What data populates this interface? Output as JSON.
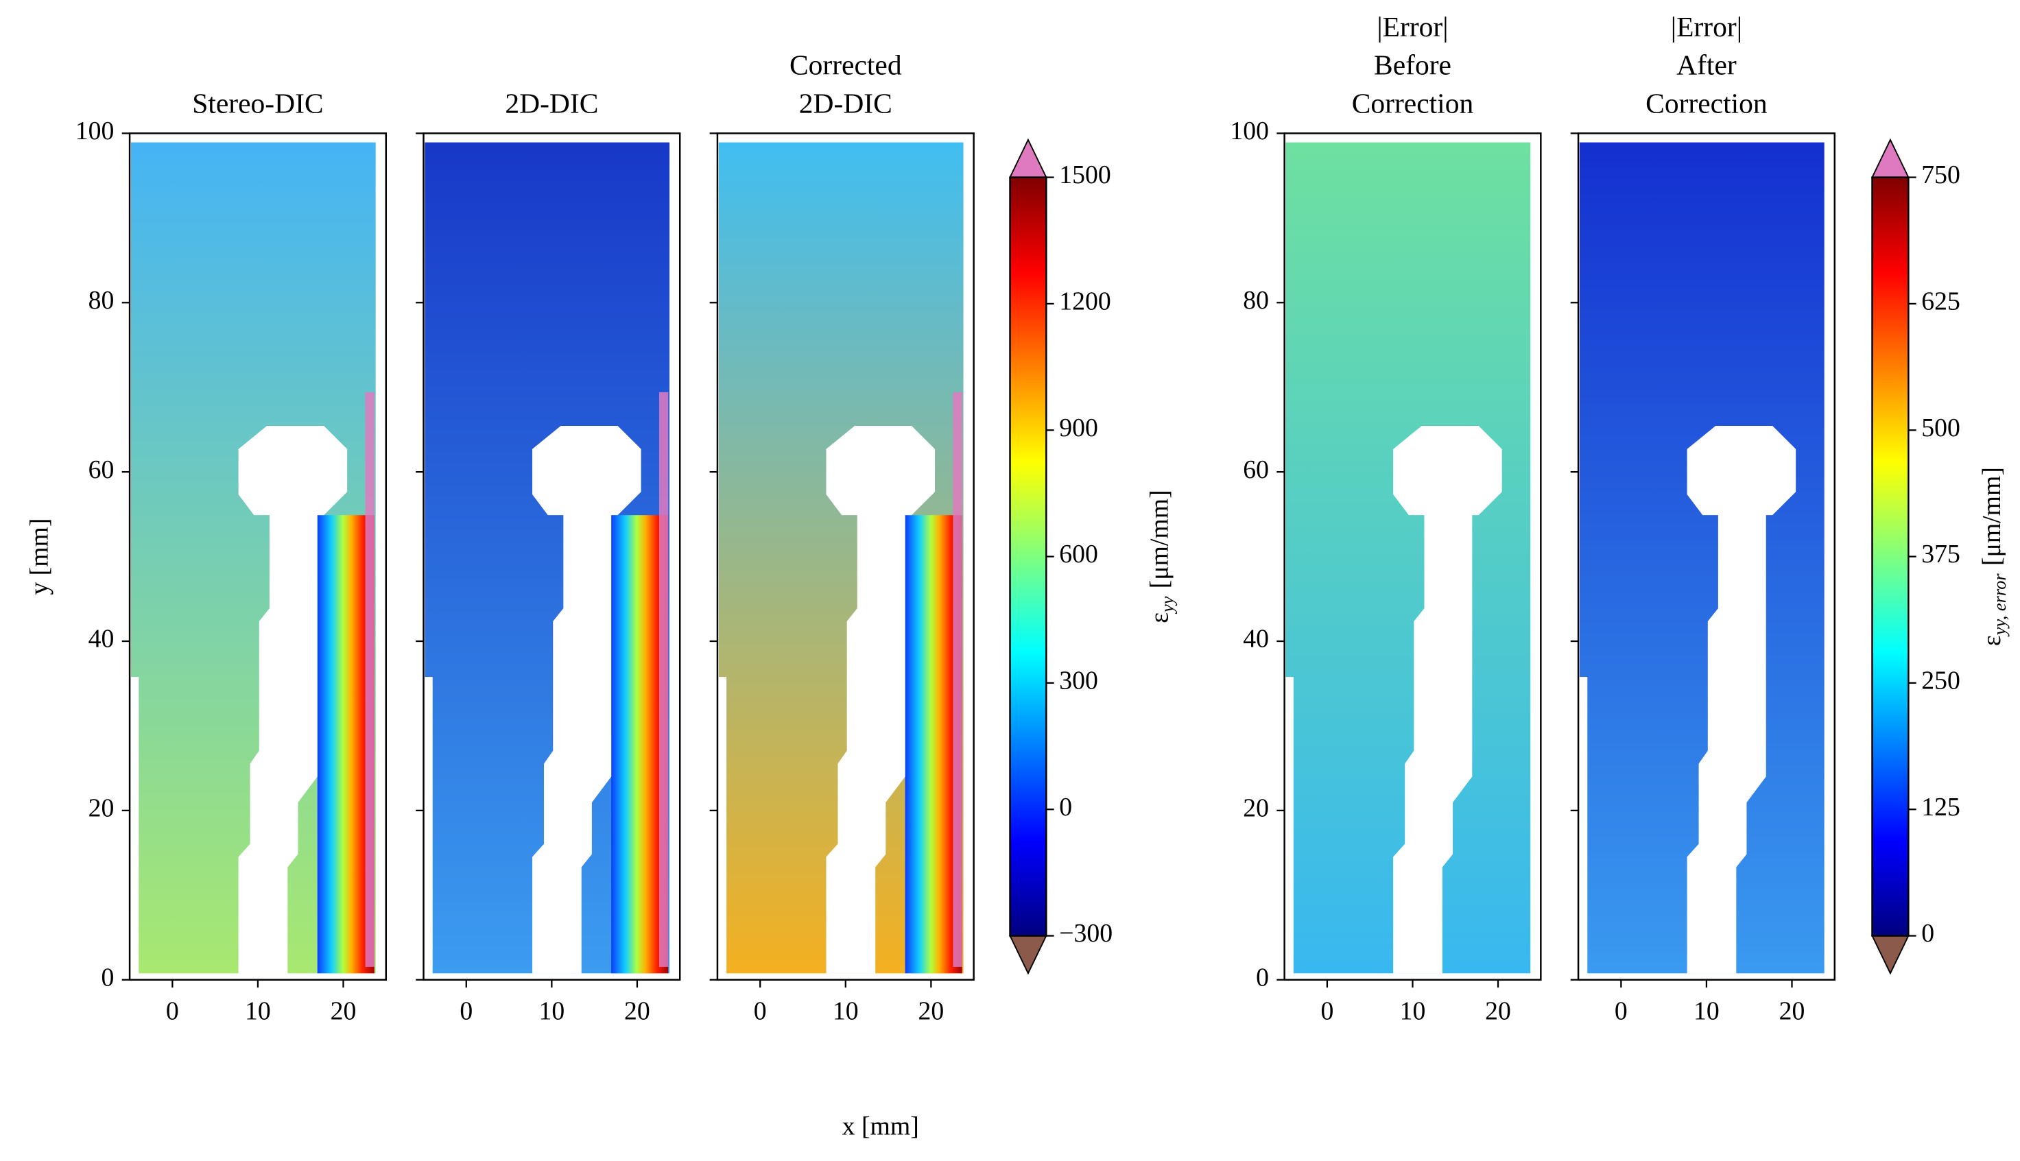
{
  "figure": {
    "xlabel": "x [mm]"
  },
  "chart_data": [
    {
      "type": "heatmap",
      "title": [
        "Stereo-DIC"
      ],
      "ylabel": "y [mm]",
      "xlim": [
        -5,
        25
      ],
      "ylim": [
        0,
        100
      ],
      "xticks": [
        0,
        10,
        20
      ],
      "yticks": [
        0,
        20,
        40,
        60,
        80,
        100
      ],
      "sharey": false
    },
    {
      "type": "heatmap",
      "title": [
        "2D-DIC"
      ],
      "xlim": [
        -5,
        25
      ],
      "ylim": [
        0,
        100
      ],
      "xticks": [
        0,
        10,
        20
      ],
      "yticks": [
        0,
        20,
        40,
        60,
        80,
        100
      ],
      "sharey": true
    },
    {
      "type": "heatmap",
      "title": [
        "Corrected",
        "2D-DIC"
      ],
      "xlim": [
        -5,
        25
      ],
      "ylim": [
        0,
        100
      ],
      "xticks": [
        0,
        10,
        20
      ],
      "yticks": [
        0,
        20,
        40,
        60,
        80,
        100
      ],
      "sharey": true
    },
    {
      "type": "colorbar",
      "label": {
        "symbol": "ε",
        "subscript": "yy",
        "unit": "[μm/mm]"
      },
      "ylim": [
        -300,
        1500
      ],
      "yticks": [
        {
          "value": -300,
          "label": "−300"
        },
        0,
        300,
        600,
        900,
        1200,
        1500
      ],
      "colors": [
        "#00007f",
        "#0000ff",
        "#007fff",
        "#00ffff",
        "#7fff7f",
        "#ffff00",
        "#ff7f00",
        "#ff0000",
        "#7f0000"
      ],
      "extend_min_color": "#8b5a4a",
      "extend_max_color": "#e07ac0"
    },
    {
      "type": "heatmap",
      "title": [
        "|Error|",
        "Before",
        "Correction"
      ],
      "xlim": [
        -5,
        25
      ],
      "ylim": [
        0,
        100
      ],
      "xticks": [
        0,
        10,
        20
      ],
      "yticks": [
        0,
        20,
        40,
        60,
        80,
        100
      ],
      "sharey": false
    },
    {
      "type": "heatmap",
      "title": [
        "|Error|",
        "After",
        "Correction"
      ],
      "xlim": [
        -5,
        25
      ],
      "ylim": [
        0,
        100
      ],
      "xticks": [
        0,
        10,
        20
      ],
      "yticks": [
        0,
        20,
        40,
        60,
        80,
        100
      ],
      "sharey": true
    },
    {
      "type": "colorbar",
      "label": {
        "symbol": "ε",
        "subscript": "yy, error",
        "unit": "[μm/mm]"
      },
      "ylim": [
        0,
        750
      ],
      "yticks": [
        0,
        125,
        250,
        375,
        500,
        625,
        750
      ],
      "colors": [
        "#00007f",
        "#0000ff",
        "#007fff",
        "#00ffff",
        "#7fff7f",
        "#ffff00",
        "#ff7f00",
        "#ff0000",
        "#7f0000"
      ],
      "extend_min_color": "#8b5a4a",
      "extend_max_color": "#e07ac0"
    }
  ]
}
